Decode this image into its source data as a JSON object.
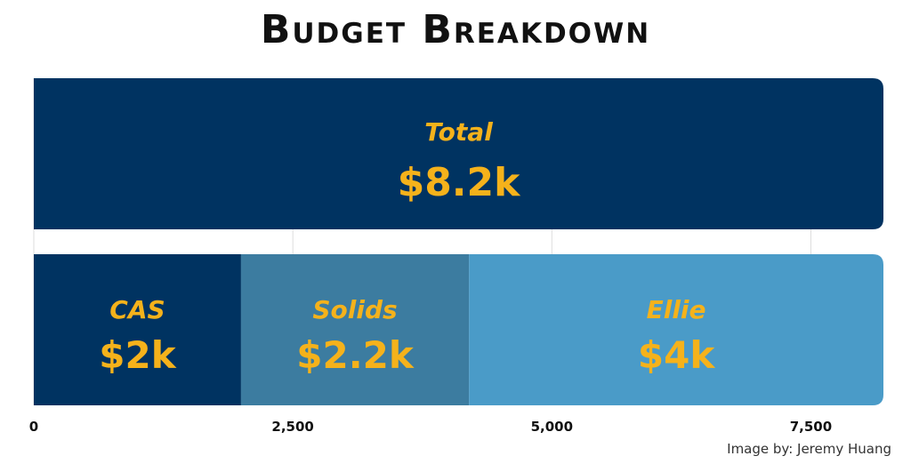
{
  "chart_data": {
    "type": "bar",
    "orientation": "horizontal",
    "stacked": true,
    "title": "Budget Breakdown",
    "xlim": [
      0,
      8200
    ],
    "xticks": [
      0,
      2500,
      5000,
      7500
    ],
    "xtick_labels": [
      "0",
      "2,500",
      "5,000",
      "7,500"
    ],
    "grid": true,
    "label_color": "#F5B21B",
    "rows": [
      {
        "segments": [
          {
            "name": "Total",
            "value": 8200,
            "label": "$8.2k",
            "color": "#003361"
          }
        ]
      },
      {
        "segments": [
          {
            "name": "CAS",
            "value": 2000,
            "label": "$2k",
            "color": "#003361"
          },
          {
            "name": "Solids",
            "value": 2200,
            "label": "$2.2k",
            "color": "#3C7CA0"
          },
          {
            "name": "Ellie",
            "value": 4000,
            "label": "$4k",
            "color": "#4A9BC8"
          }
        ]
      }
    ]
  },
  "footer": {
    "credit": "Image by: Jeremy Huang"
  }
}
